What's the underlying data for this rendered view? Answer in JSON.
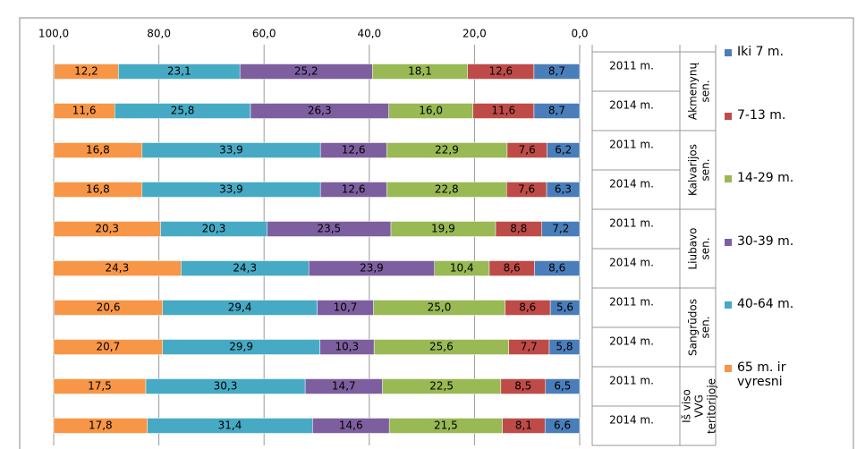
{
  "chart_data": {
    "type": "stacked_bar_horizontal",
    "categories": [
      "2011 m.",
      "2014 m.",
      "2011 m.",
      "2014 m.",
      "2011 m.",
      "2014 m.",
      "2011 m.",
      "2014 m.",
      "2011 m.",
      "2014 m."
    ],
    "category_groups": [
      [
        "Akmenynų",
        "sen."
      ],
      [
        "Kalvarijos",
        "sen."
      ],
      [
        "Liubavo",
        "sen."
      ],
      [
        "Sangrūdos",
        "sen."
      ],
      [
        "Iš viso",
        "VVG",
        "teritorijoje"
      ]
    ],
    "xlim": [
      100,
      0
    ],
    "xticks": [
      {
        "value": 100,
        "label": "100,0"
      },
      {
        "value": 80,
        "label": "80,0"
      },
      {
        "value": 60,
        "label": "60,0"
      },
      {
        "value": 40,
        "label": "40,0"
      },
      {
        "value": 20,
        "label": "20,0"
      },
      {
        "value": 0,
        "label": "0,0"
      }
    ],
    "grid": true,
    "legend": "right",
    "series": [
      {
        "name": "Iki 7 m.",
        "color": "#4a7ebb",
        "values": [
          8.7,
          8.7,
          6.2,
          6.3,
          7.2,
          8.6,
          5.6,
          5.8,
          6.5,
          6.6
        ],
        "value_labels": [
          "8,7",
          "8,7",
          "6,2",
          "6,3",
          "7,2",
          "8,6",
          "5,6",
          "5,8",
          "6,5",
          "6,6"
        ]
      },
      {
        "name": "7-13 m.",
        "color": "#be4b48",
        "values": [
          12.6,
          11.6,
          7.6,
          7.6,
          8.8,
          8.6,
          8.6,
          7.7,
          8.5,
          8.1
        ],
        "value_labels": [
          "12,6",
          "11,6",
          "7,6",
          "7,6",
          "8,8",
          "8,6",
          "8,6",
          "7,7",
          "8,5",
          "8,1"
        ]
      },
      {
        "name": "14-29 m.",
        "color": "#98b954",
        "values": [
          18.1,
          16.0,
          22.9,
          22.8,
          19.9,
          10.4,
          25.0,
          25.6,
          22.5,
          21.5
        ],
        "value_labels": [
          "18,1",
          "16,0",
          "22,9",
          "22,8",
          "19,9",
          "10,4",
          "25,0",
          "25,6",
          "22,5",
          "21,5"
        ]
      },
      {
        "name": "30-39 m.",
        "color": "#7d5fa0",
        "values": [
          25.2,
          26.3,
          12.6,
          12.6,
          23.5,
          23.9,
          10.7,
          10.3,
          14.7,
          14.6
        ],
        "value_labels": [
          "25,2",
          "26,3",
          "12,6",
          "12,6",
          "23,5",
          "23,9",
          "10,7",
          "10,3",
          "14,7",
          "14,6"
        ]
      },
      {
        "name": "40-64 m.",
        "color": "#46aac5",
        "values": [
          23.1,
          25.8,
          33.9,
          33.9,
          20.3,
          24.3,
          29.4,
          29.9,
          30.3,
          31.4
        ],
        "value_labels": [
          "23,1",
          "25,8",
          "33,9",
          "33,9",
          "20,3",
          "24,3",
          "29,4",
          "29,9",
          "30,3",
          "31,4"
        ]
      },
      {
        "name": "65 m. ir vyresni",
        "color": "#f79646",
        "values": [
          12.2,
          11.6,
          16.8,
          16.8,
          20.3,
          24.3,
          20.6,
          20.7,
          17.5,
          17.8
        ],
        "value_labels": [
          "12,2",
          "11,6",
          "16,8",
          "16,8",
          "20,3",
          "24,3",
          "20,6",
          "20,7",
          "17,5",
          "17,8"
        ]
      }
    ]
  }
}
